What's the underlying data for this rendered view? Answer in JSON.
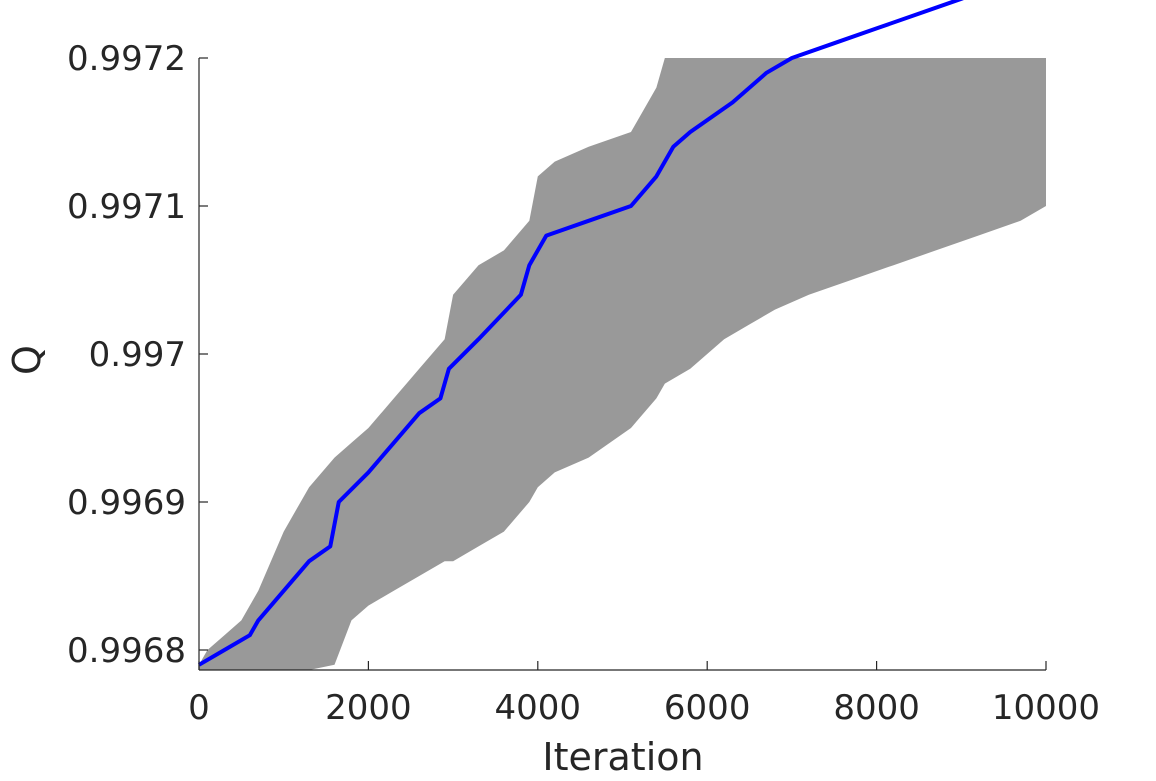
{
  "chart_data": {
    "type": "area",
    "xlabel": "Iteration",
    "ylabel": "Q",
    "xlim": [
      0,
      10000
    ],
    "ylim": [
      0.99678,
      0.9972
    ],
    "x_ticks": [
      0,
      2000,
      4000,
      6000,
      8000,
      10000
    ],
    "x_tick_labels": [
      "0",
      "2000",
      "4000",
      "6000",
      "8000",
      "10000"
    ],
    "y_ticks": [
      0.9968,
      0.9969,
      0.997,
      0.9971,
      0.9972
    ],
    "y_tick_labels": [
      "0.9968",
      "0.9969",
      "0.997",
      "0.9971",
      "0.9972"
    ],
    "grid": false,
    "legend": "none",
    "series": [
      {
        "kind": "line",
        "color": "#0000ff",
        "x": [
          0,
          300,
          600,
          700,
          1000,
          1300,
          1550,
          1650,
          2000,
          2300,
          2600,
          2850,
          2950,
          3300,
          3800,
          3900,
          4100,
          4600,
          5100,
          5400,
          5600,
          5800,
          6300,
          6700,
          7000,
          7500,
          8000,
          8500,
          9000,
          9500,
          10000
        ],
        "y": [
          0.99679,
          0.9968,
          0.99681,
          0.99682,
          0.99684,
          0.99686,
          0.99687,
          0.9969,
          0.99692,
          0.99694,
          0.99696,
          0.99697,
          0.99699,
          0.99701,
          0.99704,
          0.99706,
          0.99708,
          0.99709,
          0.9971,
          0.99712,
          0.99714,
          0.99715,
          0.99717,
          0.99719,
          0.9972,
          0.99721,
          0.99722,
          0.99723,
          0.99724,
          0.99725,
          0.99726
        ]
      },
      {
        "kind": "band",
        "color": "#999999",
        "x": [
          0,
          100,
          300,
          500,
          700,
          1000,
          1300,
          1600,
          1800,
          2000,
          2300,
          2600,
          2900,
          3000,
          3300,
          3600,
          3900,
          4000,
          4200,
          4600,
          5100,
          5400,
          5500,
          5800,
          6200,
          6500,
          6800,
          7200,
          7700,
          8200,
          8700,
          9200,
          9700,
          10000
        ],
        "upper": [
          0.99679,
          0.9968,
          0.99681,
          0.99682,
          0.99684,
          0.99688,
          0.99691,
          0.99693,
          0.99694,
          0.99695,
          0.99697,
          0.99699,
          0.99701,
          0.99704,
          0.99706,
          0.99707,
          0.99709,
          0.99712,
          0.99713,
          0.99714,
          0.99715,
          0.99718,
          0.99722,
          0.99723,
          0.99724,
          0.99725,
          0.99726,
          0.99727,
          0.99728,
          0.99729,
          0.9973,
          0.99731,
          0.99732,
          0.99733
        ],
        "lower": [
          0.99678,
          0.99678,
          0.99678,
          0.99678,
          0.99678,
          0.99678,
          0.99678,
          0.99679,
          0.99682,
          0.99683,
          0.99684,
          0.99685,
          0.99686,
          0.99686,
          0.99687,
          0.99688,
          0.9969,
          0.99691,
          0.99692,
          0.99693,
          0.99695,
          0.99697,
          0.99698,
          0.99699,
          0.99701,
          0.99702,
          0.99703,
          0.99704,
          0.99705,
          0.99706,
          0.99707,
          0.99708,
          0.99709,
          0.9971
        ]
      }
    ]
  }
}
